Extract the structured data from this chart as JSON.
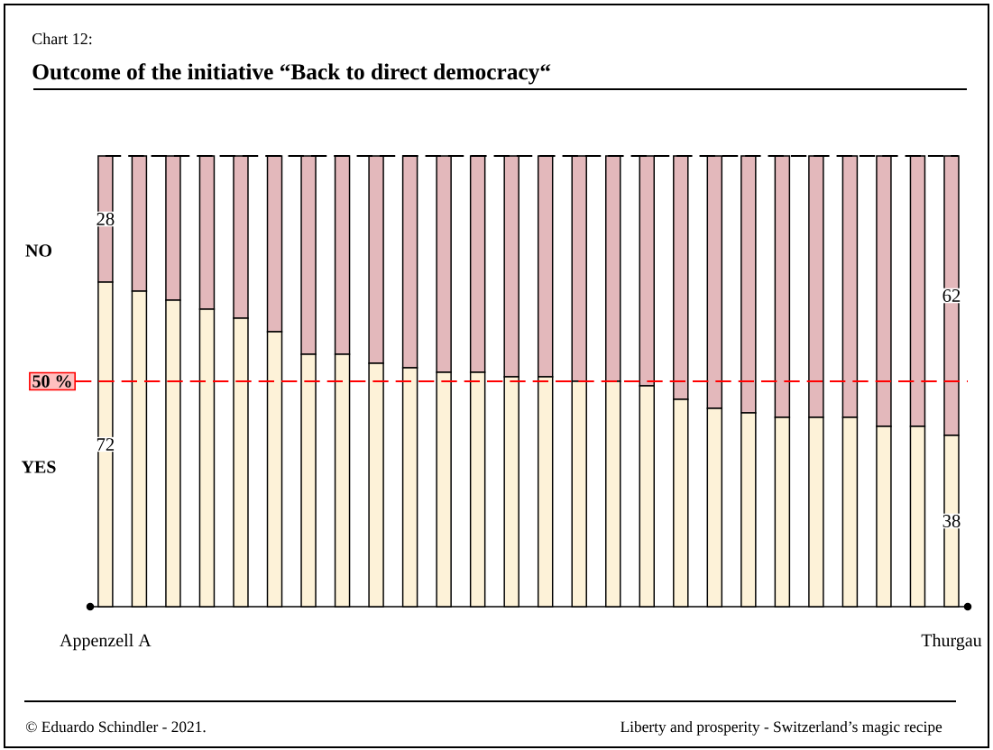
{
  "chart_data": {
    "type": "bar",
    "title": "Outcome of the initiative “Back to direct democracy“",
    "annotations": [
      "Chart 12:",
      "© Eduardo Schindler - 2021.",
      "Liberty and prosperity - Switzerland’s magic recipe"
    ],
    "categories": [
      "Appenzell A",
      null,
      null,
      null,
      null,
      null,
      null,
      null,
      null,
      null,
      null,
      null,
      null,
      null,
      null,
      null,
      null,
      null,
      null,
      null,
      null,
      null,
      null,
      null,
      null,
      "Thurgau"
    ],
    "stacked": true,
    "series": [
      {
        "name": "YES",
        "color": "#fdf2d8",
        "values": [
          72,
          70,
          68,
          66,
          64,
          61,
          56,
          56,
          54,
          53,
          52,
          52,
          51,
          51,
          50,
          50,
          49,
          46,
          44,
          43,
          42,
          42,
          42,
          40,
          40,
          38
        ],
        "value_labels": [
          "72",
          null,
          null,
          null,
          null,
          null,
          null,
          null,
          null,
          null,
          null,
          null,
          null,
          null,
          null,
          null,
          null,
          null,
          null,
          null,
          null,
          null,
          null,
          null,
          null,
          "38"
        ]
      },
      {
        "name": "NO",
        "color": "#e3b8bb",
        "values": [
          28,
          30,
          32,
          34,
          36,
          39,
          44,
          44,
          46,
          47,
          48,
          48,
          49,
          49,
          50,
          50,
          51,
          54,
          56,
          57,
          58,
          58,
          58,
          60,
          60,
          62
        ],
        "value_labels": [
          "28",
          null,
          null,
          null,
          null,
          null,
          null,
          null,
          null,
          null,
          null,
          null,
          null,
          null,
          null,
          null,
          null,
          null,
          null,
          null,
          null,
          null,
          null,
          null,
          null,
          "62"
        ]
      }
    ],
    "ylim": [
      0,
      100
    ],
    "tick_labels": "x",
    "ref_lines": [
      {
        "axis": "y",
        "value": 50,
        "label": "50 %",
        "color": "#ff0000",
        "line_style": "dashed"
      },
      {
        "axis": "y",
        "value": 100,
        "color": "#000000",
        "line_style": "dashed"
      }
    ]
  }
}
